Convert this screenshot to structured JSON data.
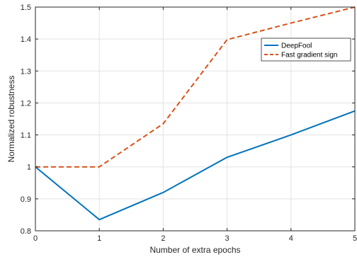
{
  "chart_data": {
    "type": "line",
    "title": "",
    "xlabel": "Number of extra epochs",
    "ylabel": "Normalized robustness",
    "xlim": [
      0,
      5
    ],
    "ylim": [
      0.8,
      1.5
    ],
    "xticks": [
      0,
      1,
      2,
      3,
      4,
      5
    ],
    "xtick_labels": [
      "0",
      "1",
      "2",
      "3",
      "4",
      "5"
    ],
    "yticks": [
      0.8,
      0.9,
      1.0,
      1.1,
      1.2,
      1.3,
      1.4,
      1.5
    ],
    "ytick_labels": [
      "0.8",
      "0.9",
      "1",
      "1.1",
      "1.2",
      "1.3",
      "1.4",
      "1.5"
    ],
    "grid": true,
    "legend_position": "upper-right",
    "series": [
      {
        "name": "DeepFool",
        "x": [
          0,
          1,
          2,
          3,
          4,
          5
        ],
        "y": [
          1.0,
          0.835,
          0.92,
          1.03,
          1.1,
          1.175
        ],
        "color": "#0072BD",
        "dash": "solid"
      },
      {
        "name": "Fast gradient sign",
        "x": [
          0,
          1,
          2,
          3,
          4,
          5
        ],
        "y": [
          1.0,
          1.0,
          1.135,
          1.398,
          1.45,
          1.5
        ],
        "color": "#D95319",
        "dash": "dashed"
      }
    ]
  }
}
